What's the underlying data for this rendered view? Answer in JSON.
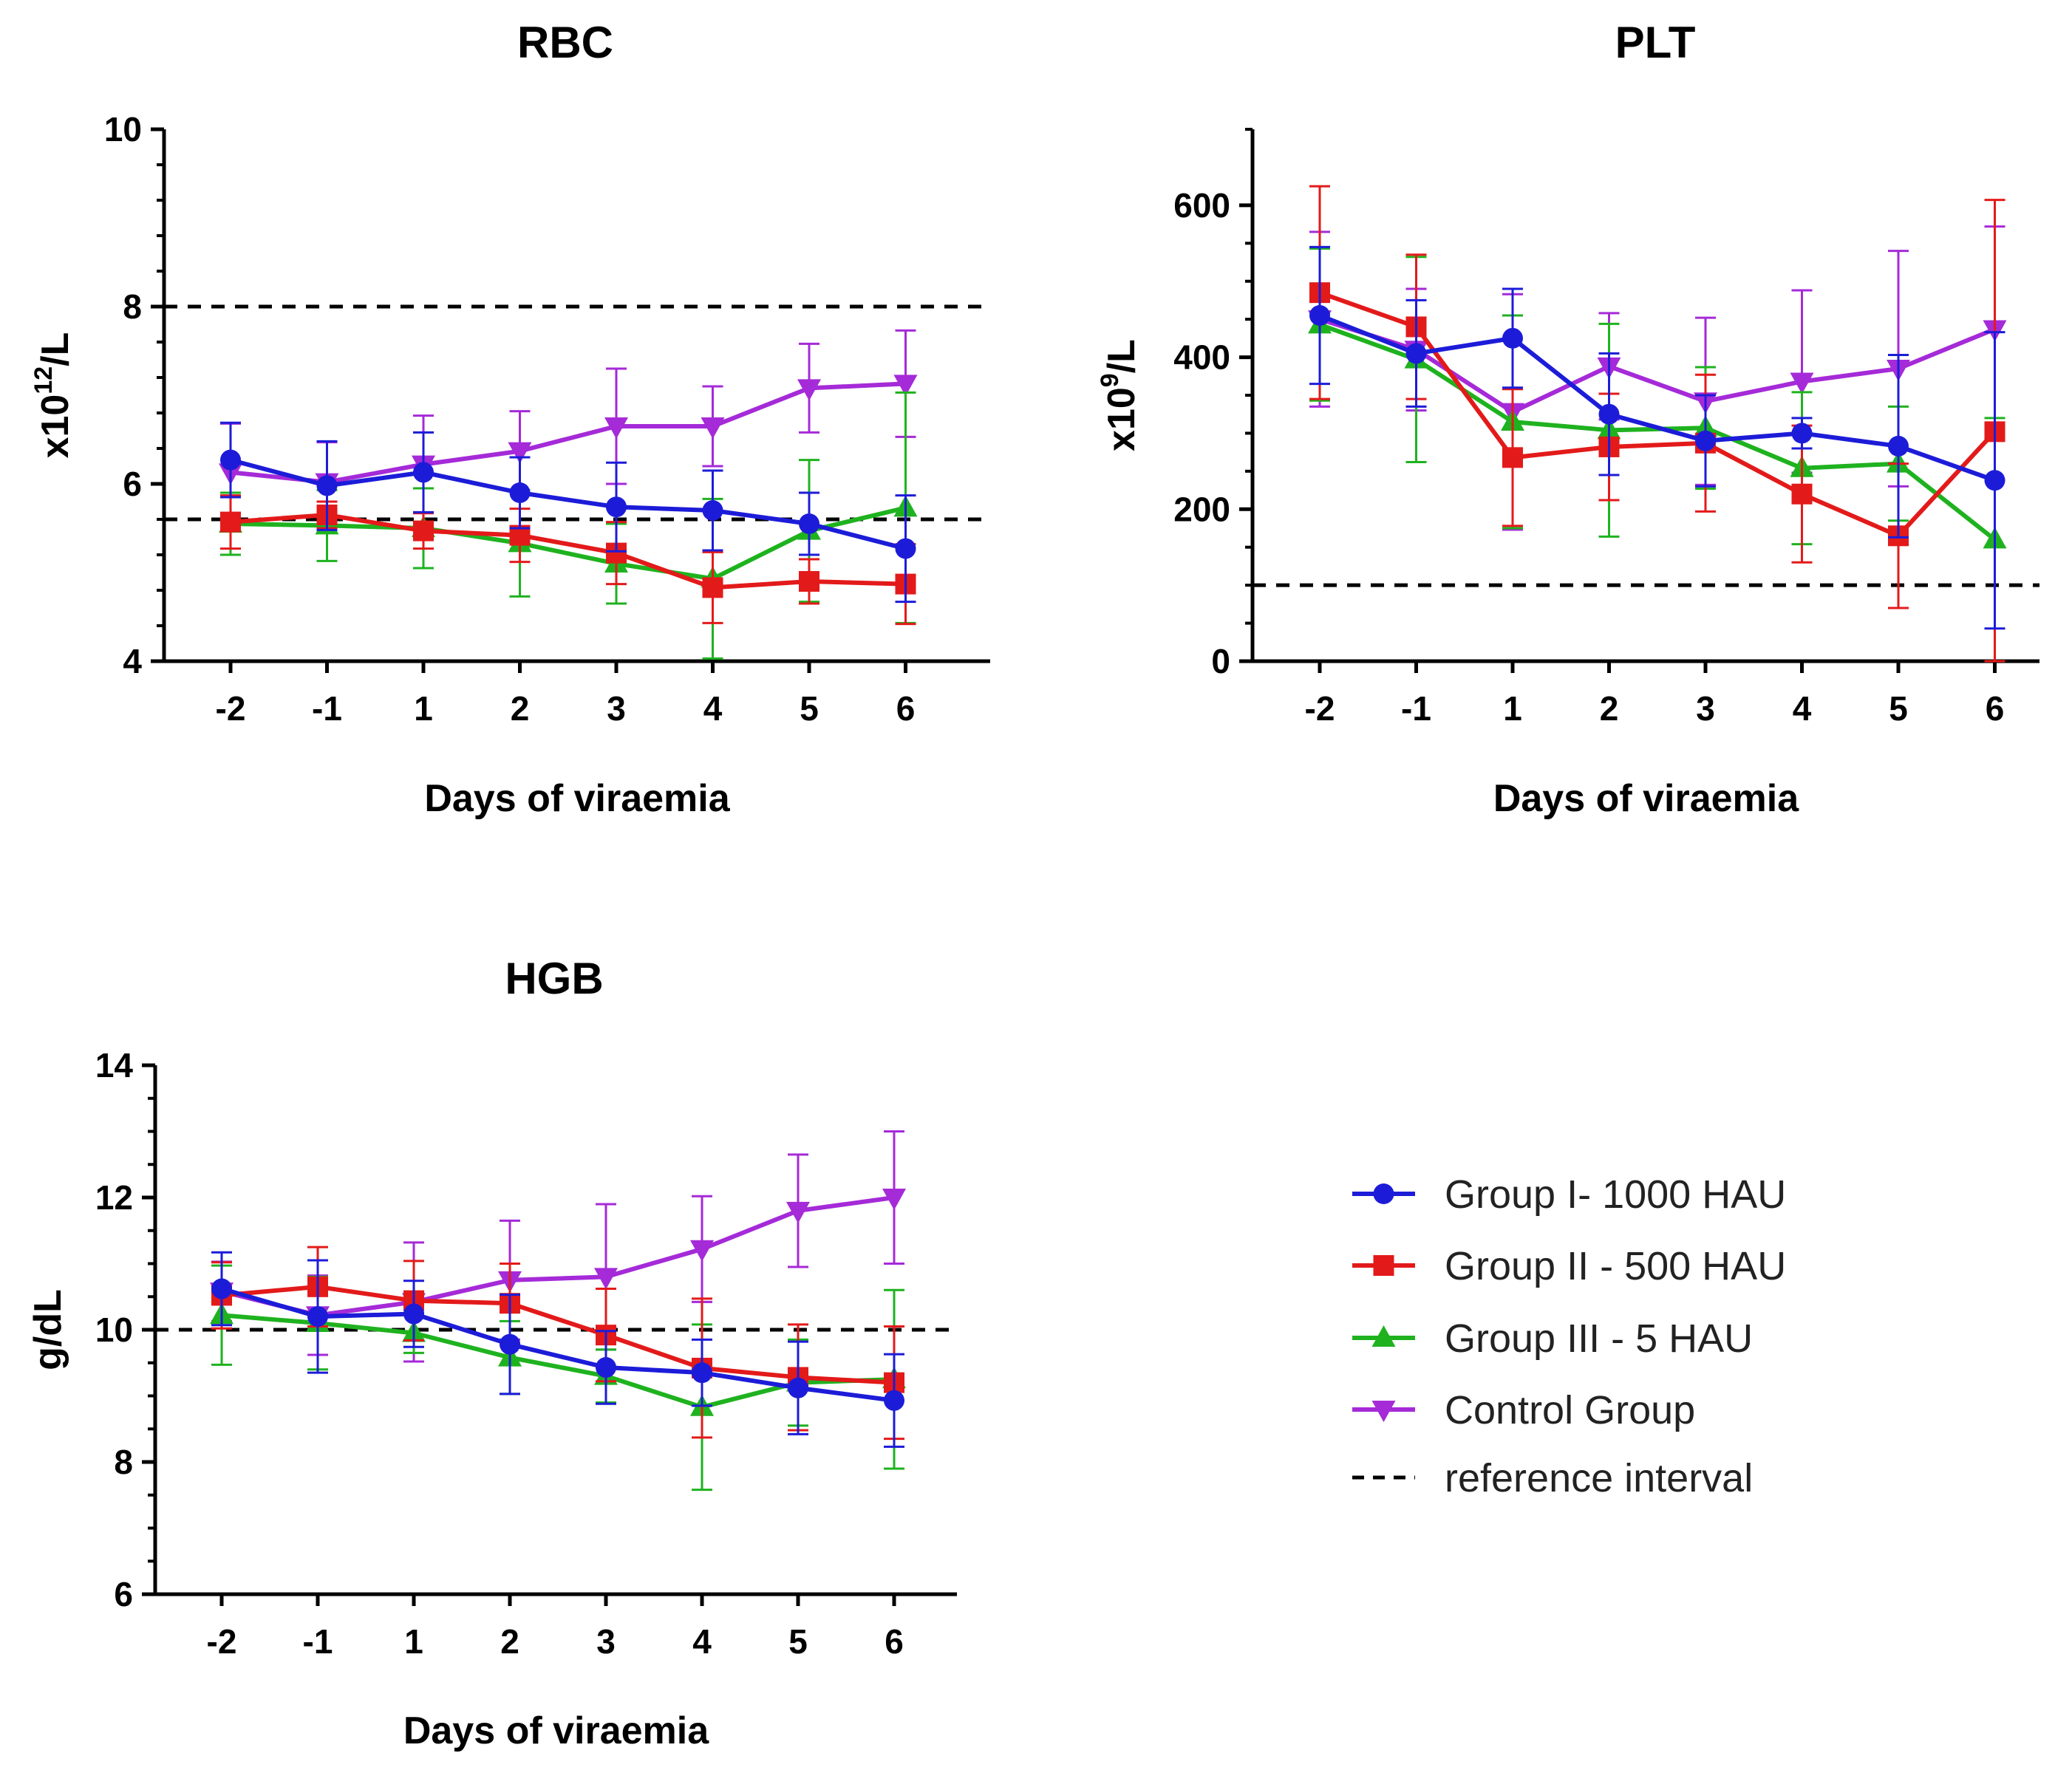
{
  "chart_data": [
    {
      "type": "line",
      "title": "RBC",
      "xlabel": "Days of viraemia",
      "ylabel_base": "x10",
      "ylabel_exp": "12",
      "ylabel_unit": "/L",
      "categories": [
        "-2",
        "-1",
        "1",
        "2",
        "3",
        "4",
        "5",
        "6"
      ],
      "ylim": [
        4,
        10
      ],
      "yticks": [
        "4",
        "6",
        "8",
        "10"
      ],
      "reference_lines": [
        8.0,
        5.6
      ],
      "series": [
        {
          "name": "Group I- 1000 HAU",
          "values": [
            6.27,
            5.98,
            6.13,
            5.9,
            5.74,
            5.7,
            5.55,
            5.27
          ],
          "err": [
            0.42,
            0.5,
            0.45,
            0.4,
            0.5,
            0.45,
            0.35,
            0.6
          ]
        },
        {
          "name": "Group II - 500 HAU",
          "values": [
            5.57,
            5.65,
            5.47,
            5.42,
            5.22,
            4.83,
            4.9,
            4.87
          ],
          "err": [
            0.3,
            0.15,
            0.2,
            0.3,
            0.35,
            0.4,
            0.25,
            0.45
          ]
        },
        {
          "name": "Group III - 5 HAU",
          "values": [
            5.55,
            5.53,
            5.5,
            5.33,
            5.1,
            4.93,
            5.47,
            5.73
          ],
          "err": [
            0.35,
            0.4,
            0.45,
            0.6,
            0.45,
            0.9,
            0.8,
            1.3
          ]
        },
        {
          "name": "Control Group",
          "values": [
            6.13,
            6.02,
            6.22,
            6.37,
            6.65,
            6.65,
            7.08,
            7.13
          ],
          "err": [
            0.55,
            0.45,
            0.55,
            0.45,
            0.65,
            0.45,
            0.5,
            0.6
          ]
        }
      ]
    },
    {
      "type": "line",
      "title": "PLT",
      "xlabel": "Days of viraemia",
      "ylabel_base": "x10",
      "ylabel_exp": "9",
      "ylabel_unit": "/L",
      "categories": [
        "-2",
        "-1",
        "1",
        "2",
        "3",
        "4",
        "5",
        "6"
      ],
      "ylim": [
        0,
        700
      ],
      "yticks": [
        "0",
        "200",
        "400",
        "600"
      ],
      "reference_lines": [
        100
      ],
      "series": [
        {
          "name": "Group I- 1000 HAU",
          "values": [
            455,
            405,
            425,
            325,
            290,
            300,
            283,
            238
          ],
          "err": [
            90,
            70,
            65,
            80,
            60,
            20,
            120,
            195
          ]
        },
        {
          "name": "Group II - 500 HAU",
          "values": [
            485,
            440,
            268,
            282,
            287,
            220,
            165,
            302
          ],
          "err": [
            140,
            95,
            90,
            70,
            90,
            90,
            95,
            305
          ]
        },
        {
          "name": "Group III - 5 HAU",
          "values": [
            443,
            397,
            315,
            304,
            307,
            254,
            260,
            160
          ],
          "err": [
            100,
            135,
            140,
            140,
            80,
            100,
            75,
            160
          ]
        },
        {
          "name": "Control Group",
          "values": [
            450,
            410,
            328,
            388,
            342,
            368,
            385,
            437
          ],
          "err": [
            115,
            80,
            155,
            70,
            110,
            120,
            155,
            135
          ]
        }
      ]
    },
    {
      "type": "line",
      "title": "HGB",
      "xlabel": "Days of viraemia",
      "ylabel_base": "g/dL",
      "ylabel_exp": "",
      "ylabel_unit": "",
      "categories": [
        "-2",
        "-1",
        "1",
        "2",
        "3",
        "4",
        "5",
        "6"
      ],
      "ylim": [
        6,
        14
      ],
      "yticks": [
        "6",
        "8",
        "10",
        "12",
        "14"
      ],
      "reference_lines": [
        10.0
      ],
      "series": [
        {
          "name": "Group I- 1000 HAU",
          "values": [
            10.62,
            10.2,
            10.24,
            9.78,
            9.43,
            9.35,
            9.12,
            8.93
          ],
          "err": [
            0.55,
            0.85,
            0.5,
            0.75,
            0.55,
            0.5,
            0.7,
            0.7
          ]
        },
        {
          "name": "Group II - 500 HAU",
          "values": [
            10.52,
            10.65,
            10.44,
            10.4,
            9.92,
            9.42,
            9.28,
            9.2
          ],
          "err": [
            0.5,
            0.6,
            0.6,
            0.6,
            0.7,
            1.05,
            0.8,
            0.85
          ]
        },
        {
          "name": "Group III - 5 HAU",
          "values": [
            10.22,
            10.1,
            9.95,
            9.58,
            9.3,
            8.83,
            9.2,
            9.25
          ],
          "err": [
            0.75,
            0.7,
            0.3,
            0.55,
            0.4,
            1.25,
            0.65,
            1.35
          ]
        },
        {
          "name": "Control Group",
          "values": [
            10.58,
            10.22,
            10.42,
            10.75,
            10.8,
            11.22,
            11.8,
            12.0
          ],
          "err": [
            0.45,
            0.6,
            0.9,
            0.9,
            1.1,
            0.8,
            0.85,
            1.0
          ]
        }
      ]
    }
  ],
  "legend": {
    "position": "bottom-right",
    "entries": [
      {
        "label": "Group I- 1000 HAU",
        "marker": "circle",
        "color": "#1c1cd8"
      },
      {
        "label": "Group II - 500 HAU",
        "marker": "square",
        "color": "#e31a1a"
      },
      {
        "label": "Group III - 5 HAU",
        "marker": "triangle-up",
        "color": "#1fb21f"
      },
      {
        "label": "Control Group",
        "marker": "triangle-down",
        "color": "#a52ad8"
      },
      {
        "label": "reference interval",
        "marker": "dashed-line",
        "color": "#000000"
      }
    ]
  }
}
